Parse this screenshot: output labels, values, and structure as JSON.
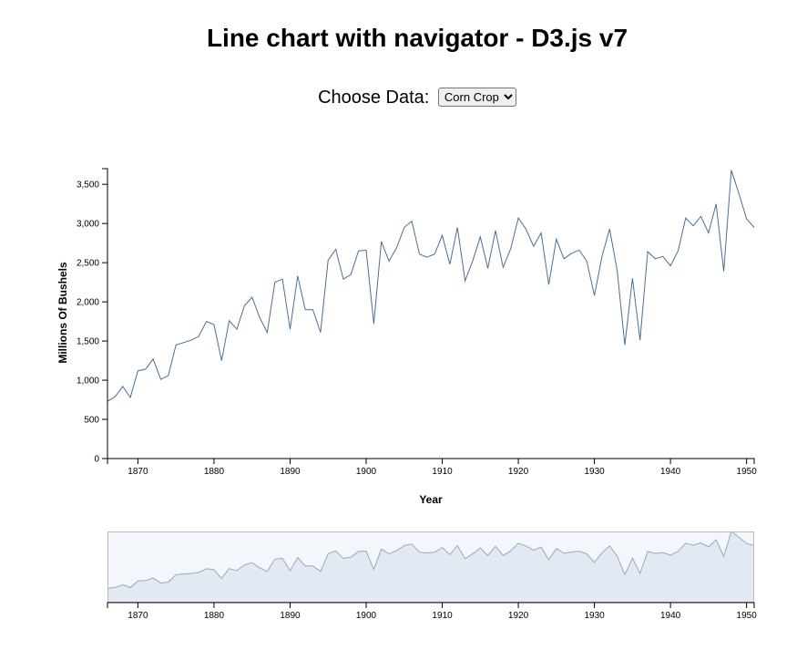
{
  "title": "Line chart with navigator - D3.js v7",
  "controls": {
    "label": "Choose Data:",
    "selected": "Corn Crop"
  },
  "colors": {
    "line": "#4a6f96",
    "nav_area": "#e2e9f3",
    "nav_line": "#9aa8b8",
    "nav_bg": "#f3f6fb",
    "nav_border": "#bbbbbb"
  },
  "chart_data": {
    "type": "line",
    "title": "Line chart with navigator - D3.js v7",
    "xlabel": "Year",
    "ylabel": "Millions Of Bushels",
    "xlim": [
      1866,
      1951
    ],
    "ylim": [
      0,
      3700
    ],
    "xticks": [
      "1870",
      "1880",
      "1890",
      "1900",
      "1910",
      "1920",
      "1930",
      "1940",
      "1950"
    ],
    "yticks": [
      "0",
      "500",
      "1,000",
      "1,500",
      "2,000",
      "2,500",
      "3,000",
      "3,500"
    ],
    "grid": false,
    "legend": "none",
    "series": [
      {
        "x": [
          1866,
          1867,
          1868,
          1869,
          1870,
          1871,
          1872,
          1873,
          1874,
          1875,
          1876,
          1877,
          1878,
          1879,
          1880,
          1881,
          1882,
          1883,
          1884,
          1885,
          1886,
          1887,
          1888,
          1889,
          1890,
          1891,
          1892,
          1893,
          1894,
          1895,
          1896,
          1897,
          1898,
          1899,
          1900,
          1901,
          1902,
          1903,
          1904,
          1905,
          1906,
          1907,
          1908,
          1909,
          1910,
          1911,
          1912,
          1913,
          1914,
          1915,
          1916,
          1917,
          1918,
          1919,
          1920,
          1921,
          1922,
          1923,
          1924,
          1925,
          1926,
          1927,
          1928,
          1929,
          1930,
          1931,
          1932,
          1933,
          1934,
          1935,
          1936,
          1937,
          1938,
          1939,
          1940,
          1941,
          1942,
          1943,
          1944,
          1945,
          1946,
          1947,
          1948,
          1949,
          1950,
          1951
        ],
        "y": [
          730,
          790,
          920,
          780,
          1120,
          1140,
          1270,
          1010,
          1060,
          1450,
          1480,
          1510,
          1560,
          1750,
          1710,
          1250,
          1760,
          1650,
          1950,
          2060,
          1800,
          1610,
          2250,
          2290,
          1650,
          2330,
          1900,
          1900,
          1610,
          2530,
          2670,
          2290,
          2350,
          2650,
          2660,
          1720,
          2770,
          2520,
          2690,
          2950,
          3030,
          2610,
          2570,
          2610,
          2850,
          2480,
          2950,
          2270,
          2520,
          2830,
          2430,
          2910,
          2440,
          2680,
          3070,
          2930,
          2710,
          2880,
          2220,
          2800,
          2550,
          2620,
          2660,
          2520,
          2080,
          2580,
          2930,
          2400,
          1450,
          2300,
          1510,
          2640,
          2550,
          2580,
          2460,
          2650,
          3070,
          2970,
          3090,
          2880,
          3250,
          2390,
          3680,
          3380,
          3060,
          2950
        ]
      }
    ]
  }
}
